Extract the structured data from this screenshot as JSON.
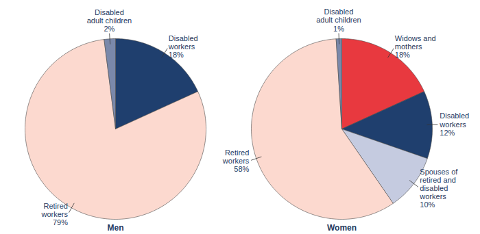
{
  "chart_data": [
    {
      "type": "pie",
      "title": "Men",
      "categories": [
        "Disabled workers",
        "Retired workers",
        "Disabled adult children"
      ],
      "values": [
        18,
        79,
        2
      ],
      "value_labels": [
        "18%",
        "79%",
        "2%"
      ],
      "colors": [
        "#1f3f6e",
        "#fcd9cf",
        "#7a88aa"
      ],
      "data_labels": true
    },
    {
      "type": "pie",
      "title": "Women",
      "categories": [
        "Widows and mothers",
        "Disabled workers",
        "Spouses of retired and disabled workers",
        "Retired workers",
        "Disabled adult children"
      ],
      "values": [
        18,
        12,
        10,
        58,
        1
      ],
      "value_labels": [
        "18%",
        "12%",
        "10%",
        "58%",
        "1%"
      ],
      "colors": [
        "#e8393f",
        "#1f3f6e",
        "#c5cbe0",
        "#fcd9cf",
        "#7a88aa"
      ],
      "data_labels": true
    }
  ]
}
